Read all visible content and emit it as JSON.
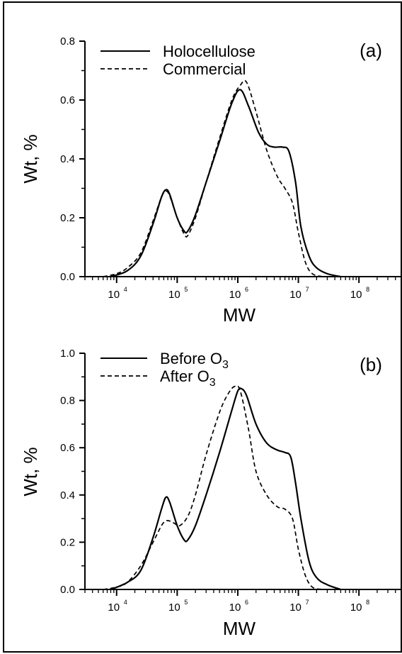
{
  "chart_data": [
    {
      "type": "line",
      "panel_label": "(a)",
      "xlabel": "MW",
      "ylabel": "Wt, %",
      "xscale": "log",
      "xlim": [
        3000,
        500000000
      ],
      "ylim": [
        0,
        0.8
      ],
      "yticks": [
        "0.0",
        "0.2",
        "0.4",
        "0.6",
        "0.8"
      ],
      "xtick_bases": [
        "10",
        "10",
        "10",
        "10",
        "10"
      ],
      "xtick_exps": [
        "4",
        "5",
        "6",
        "7",
        "8"
      ],
      "legend_position": "top-left",
      "series": [
        {
          "name": "Holocellulose",
          "style": "solid",
          "x": [
            8000,
            15000,
            25000,
            40000,
            55000,
            65000,
            75000,
            100000,
            130000,
            150000,
            200000,
            300000,
            500000,
            800000,
            1100000,
            1500000,
            2200000,
            3000000,
            4000000,
            5500000,
            7000000,
            9000000,
            11000000,
            15000000,
            20000000,
            30000000,
            50000000
          ],
          "y": [
            0.0,
            0.02,
            0.07,
            0.18,
            0.27,
            0.295,
            0.28,
            0.2,
            0.155,
            0.155,
            0.21,
            0.32,
            0.46,
            0.59,
            0.635,
            0.58,
            0.49,
            0.45,
            0.44,
            0.44,
            0.425,
            0.32,
            0.17,
            0.07,
            0.03,
            0.01,
            0.0
          ]
        },
        {
          "name": "Commercial",
          "style": "dashed",
          "x": [
            6000,
            10000,
            15000,
            25000,
            40000,
            55000,
            65000,
            75000,
            100000,
            130000,
            150000,
            200000,
            300000,
            500000,
            800000,
            1100000,
            1400000,
            2000000,
            3000000,
            4500000,
            6000000,
            8000000,
            10000000,
            13000000,
            17000000,
            25000000
          ],
          "y": [
            0.0,
            0.01,
            0.03,
            0.08,
            0.19,
            0.27,
            0.29,
            0.275,
            0.2,
            0.145,
            0.14,
            0.2,
            0.32,
            0.47,
            0.6,
            0.65,
            0.66,
            0.56,
            0.43,
            0.34,
            0.3,
            0.25,
            0.15,
            0.05,
            0.01,
            0.0
          ]
        }
      ]
    },
    {
      "type": "line",
      "panel_label": "(b)",
      "xlabel": "MW",
      "ylabel": "Wt, %",
      "xscale": "log",
      "xlim": [
        3000,
        500000000
      ],
      "ylim": [
        0,
        1.0
      ],
      "yticks": [
        "0.0",
        "0.2",
        "0.4",
        "0.6",
        "0.8",
        "1.0"
      ],
      "xtick_bases": [
        "10",
        "10",
        "10",
        "10",
        "10"
      ],
      "xtick_exps": [
        "4",
        "5",
        "6",
        "7",
        "8"
      ],
      "legend_position": "top-left",
      "series": [
        {
          "name_base": "Before O",
          "name_sub": "3",
          "style": "solid",
          "x": [
            8000,
            15000,
            25000,
            40000,
            55000,
            65000,
            75000,
            100000,
            130000,
            150000,
            200000,
            300000,
            500000,
            800000,
            1000000,
            1150000,
            1400000,
            2000000,
            3000000,
            4500000,
            6000000,
            7500000,
            9000000,
            11000000,
            15000000,
            20000000,
            30000000,
            50000000
          ],
          "y": [
            0.0,
            0.03,
            0.08,
            0.22,
            0.34,
            0.39,
            0.37,
            0.27,
            0.21,
            0.21,
            0.27,
            0.4,
            0.58,
            0.76,
            0.84,
            0.85,
            0.82,
            0.7,
            0.62,
            0.59,
            0.58,
            0.56,
            0.45,
            0.3,
            0.12,
            0.05,
            0.02,
            0.0
          ]
        },
        {
          "name_base": "After O",
          "name_sub": "3",
          "style": "dashed",
          "x": [
            6000,
            10000,
            15000,
            25000,
            40000,
            55000,
            65000,
            75000,
            90000,
            110000,
            150000,
            200000,
            300000,
            500000,
            700000,
            900000,
            1100000,
            1500000,
            2000000,
            3000000,
            4500000,
            6000000,
            8000000,
            10000000,
            13000000,
            17000000,
            25000000
          ],
          "y": [
            0.0,
            0.01,
            0.03,
            0.1,
            0.2,
            0.27,
            0.29,
            0.29,
            0.28,
            0.27,
            0.31,
            0.4,
            0.57,
            0.75,
            0.83,
            0.86,
            0.84,
            0.68,
            0.5,
            0.4,
            0.35,
            0.34,
            0.3,
            0.17,
            0.06,
            0.01,
            0.0
          ]
        }
      ]
    }
  ]
}
